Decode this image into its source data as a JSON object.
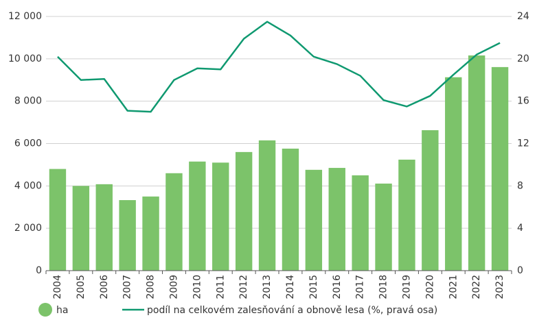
{
  "chart_data": {
    "type": "bar",
    "categories": [
      "2004",
      "2005",
      "2006",
      "2007",
      "2008",
      "2009",
      "2010",
      "2011",
      "2012",
      "2013",
      "2014",
      "2015",
      "2016",
      "2017",
      "2018",
      "2019",
      "2020",
      "2021",
      "2022",
      "2023"
    ],
    "series": [
      {
        "name": "ha",
        "type": "bar",
        "color": "#7cc36a",
        "values": [
          4800,
          4000,
          4080,
          3330,
          3500,
          4600,
          5150,
          5100,
          5600,
          6150,
          5760,
          4760,
          4850,
          4500,
          4110,
          5240,
          6630,
          9130,
          10160,
          9610
        ]
      },
      {
        "name": "podíl na celkovém zalesňování a obnově lesa (%, pravá osa)",
        "type": "line",
        "axis": "y2",
        "color": "#0f9970",
        "values": [
          20.2,
          18.0,
          18.1,
          15.1,
          15.0,
          18.0,
          19.1,
          19.0,
          21.9,
          23.5,
          22.2,
          20.2,
          19.5,
          18.4,
          16.1,
          15.5,
          16.5,
          18.5,
          20.4,
          21.5
        ]
      }
    ],
    "ylim": [
      0,
      12000
    ],
    "yticks": [
      0,
      {
        "value": 2000,
        "label": "2 000"
      },
      {
        "value": 4000,
        "label": "4 000"
      },
      {
        "value": 6000,
        "label": "6 000"
      },
      {
        "value": 8000,
        "label": "8 000"
      },
      {
        "value": 10000,
        "label": "10 000"
      },
      {
        "value": 12000,
        "label": "12 000"
      }
    ],
    "y2lim": [
      0,
      24
    ],
    "y2ticks": [
      0,
      4,
      8,
      12,
      16,
      20,
      24
    ],
    "grid": true
  }
}
